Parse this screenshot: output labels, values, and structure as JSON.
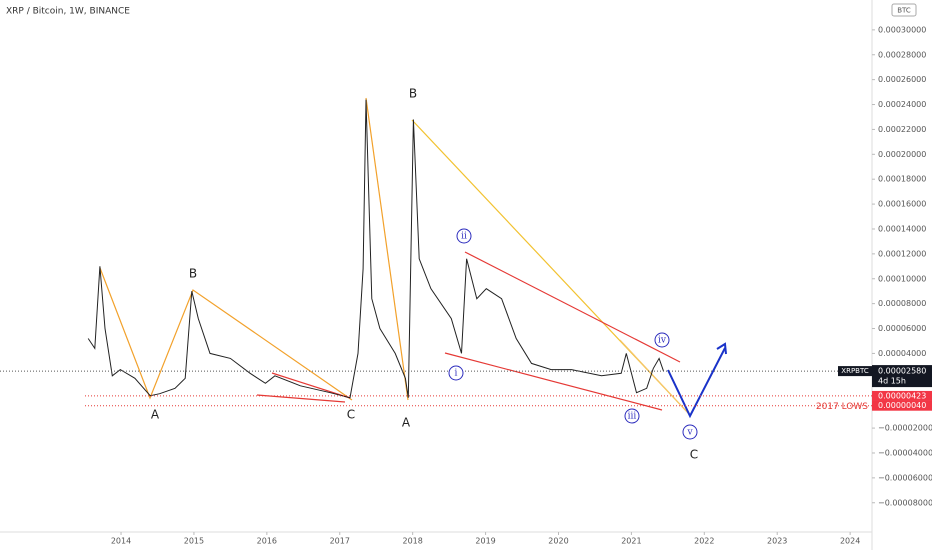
{
  "chart_data": {
    "type": "line",
    "title": "XRP / Bitcoin, 1W, BINANCE",
    "currency": "BTC",
    "x": [
      2013.55,
      2013.64,
      2013.71,
      2013.78,
      2013.88,
      2013.99,
      2014.19,
      2014.4,
      2014.53,
      2014.74,
      2014.88,
      2014.97,
      2015.06,
      2015.22,
      2015.5,
      2015.77,
      2015.98,
      2016.11,
      2016.46,
      2016.87,
      2017.14,
      2017.25,
      2017.32,
      2017.36,
      2017.44,
      2017.55,
      2017.76,
      2017.9,
      2017.94,
      2018.01,
      2018.09,
      2018.25,
      2018.53,
      2018.67,
      2018.74,
      2018.88,
      2019.01,
      2019.22,
      2019.42,
      2019.63,
      2019.9,
      2020.18,
      2020.59,
      2020.86,
      2020.93,
      2021.07,
      2021.21,
      2021.3,
      2021.38,
      2021.44
    ],
    "series": [
      {
        "name": "XRPBTC",
        "color": "#222222",
        "values": [
          5.2e-05,
          4.4e-05,
          0.00011,
          6e-05,
          2.2e-05,
          2.7e-05,
          2e-05,
          6e-06,
          7.6e-06,
          1.2e-05,
          2e-05,
          9e-05,
          6.8e-05,
          4e-05,
          3.6e-05,
          2.4e-05,
          1.6e-05,
          2.2e-05,
          1.4e-05,
          8.4e-06,
          4.4e-06,
          4e-05,
          0.000108,
          0.000244,
          8.4e-05,
          6e-05,
          4e-05,
          2e-05,
          4.4e-06,
          0.000228,
          0.000116,
          9.2e-05,
          6.8e-05,
          4e-05,
          0.000116,
          8.4e-05,
          9.2e-05,
          8.4e-05,
          5.2e-05,
          3.2e-05,
          2.7e-05,
          2.7e-05,
          2.2e-05,
          2.4e-05,
          4e-05,
          8.4e-06,
          1.2e-05,
          2.8e-05,
          3.6e-05,
          2.58e-05
        ]
      }
    ],
    "last_price": {
      "value": 2.58e-05,
      "label": "0.00002580",
      "countdown": "4d 15h"
    },
    "levels": [
      {
        "value": 4.23e-06,
        "label": "0.00000423"
      },
      {
        "value": 4e-07,
        "label": "0.00000040",
        "note": "2017 LOWS"
      }
    ],
    "xlim": [
      2012.34,
      2024.3
    ],
    "ylim": [
      -0.0001035,
      0.000324
    ],
    "xticks": [
      2014,
      2015,
      2016,
      2017,
      2018,
      2019,
      2020,
      2021,
      2022,
      2023,
      2024
    ],
    "yticks": [
      {
        "value": -8e-05,
        "label": "−0.00008000"
      },
      {
        "value": -6e-05,
        "label": "−0.00006000"
      },
      {
        "value": -4e-05,
        "label": "−0.00004000"
      },
      {
        "value": -2e-05,
        "label": "−0.00002000"
      },
      {
        "value": 4e-05,
        "label": "0.00004000"
      },
      {
        "value": 6e-05,
        "label": "0.00006000"
      },
      {
        "value": 8e-05,
        "label": "0.00008000"
      },
      {
        "value": 0.0001,
        "label": "0.00010000"
      },
      {
        "value": 0.00012,
        "label": "0.00012000"
      },
      {
        "value": 0.00014,
        "label": "0.00014000"
      },
      {
        "value": 0.00016,
        "label": "0.00016000"
      },
      {
        "value": 0.00018,
        "label": "0.00018000"
      },
      {
        "value": 0.0002,
        "label": "0.00020000"
      },
      {
        "value": 0.00022,
        "label": "0.00022000"
      },
      {
        "value": 0.00024,
        "label": "0.00024000"
      },
      {
        "value": 0.00026,
        "label": "0.00026000"
      },
      {
        "value": 0.00028,
        "label": "0.00028000"
      },
      {
        "value": 0.0003,
        "label": "0.00030000"
      }
    ],
    "annotations": [
      "A",
      "B",
      "C",
      "A",
      "B",
      "C"
    ],
    "wave_labels": [
      "i",
      "ii",
      "iii",
      "iv",
      "v"
    ]
  }
}
